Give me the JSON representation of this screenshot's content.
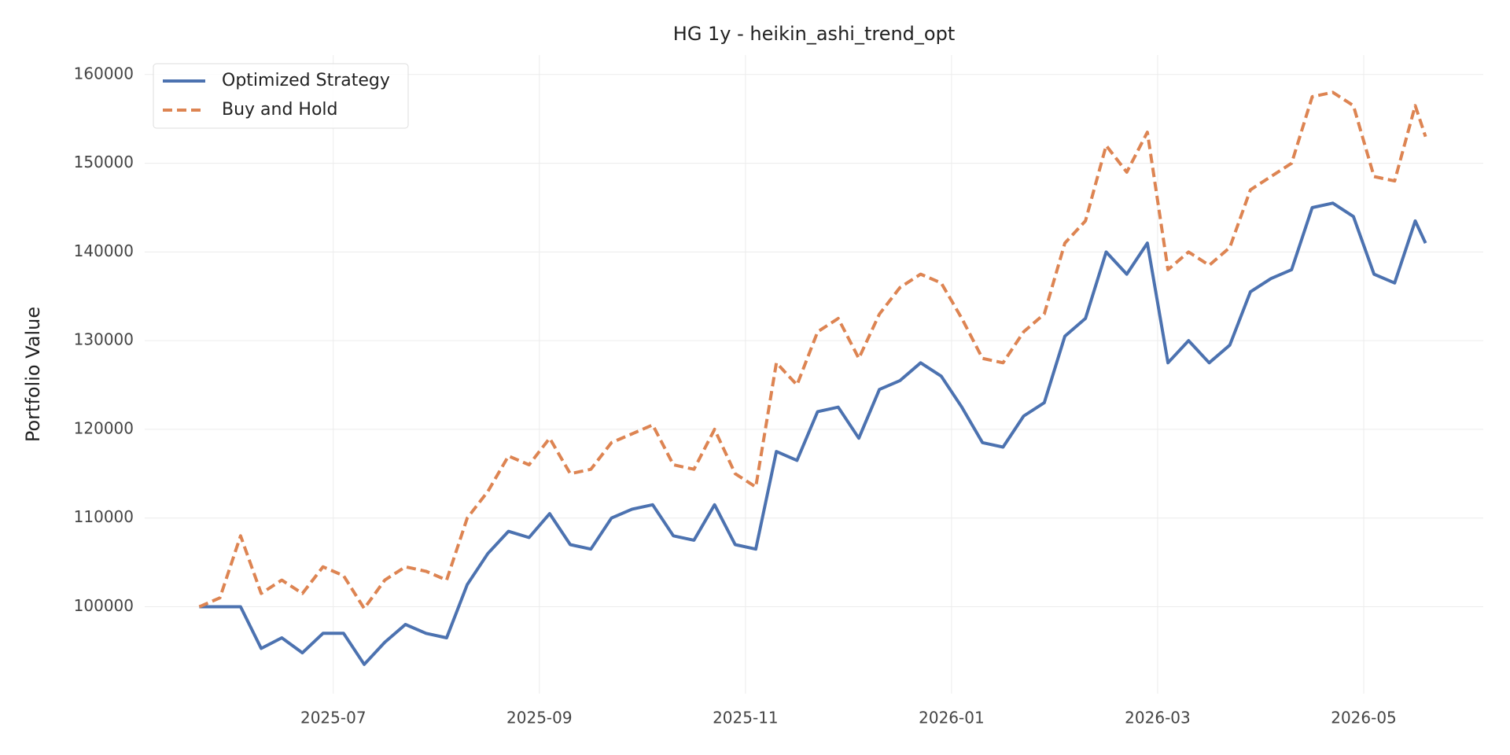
{
  "chart_data": {
    "type": "line",
    "title": "HG 1y - heikin_ashi_trend_opt",
    "ylabel": "Portfolio Value",
    "x": [
      5.7,
      5.9,
      6.1,
      6.3,
      6.5,
      6.7,
      6.9,
      7.1,
      7.3,
      7.5,
      7.7,
      7.9,
      8.1,
      8.3,
      8.5,
      8.7,
      8.9,
      9.1,
      9.3,
      9.5,
      9.7,
      9.9,
      10.1,
      10.3,
      10.5,
      10.7,
      10.9,
      11.1,
      11.3,
      11.5,
      11.7,
      11.9,
      12.1,
      12.3,
      12.5,
      12.7,
      12.9,
      13.1,
      13.3,
      13.5,
      13.7,
      13.9,
      14.1,
      14.3,
      14.5,
      14.7,
      14.9,
      15.1,
      15.3,
      15.5,
      15.7,
      15.9,
      16.1,
      16.3,
      16.5,
      16.7,
      16.9,
      17.1,
      17.3,
      17.5,
      17.6
    ],
    "series": [
      {
        "name": "Optimized Strategy",
        "color": "#4c72b0",
        "linestyle": "solid",
        "values": [
          100000,
          100000,
          100000,
          95300,
          96500,
          94800,
          97000,
          97000,
          93500,
          96000,
          98000,
          97000,
          96500,
          102500,
          106000,
          108500,
          107800,
          110500,
          107000,
          106500,
          110000,
          111000,
          111500,
          108000,
          107500,
          111500,
          107000,
          106500,
          117500,
          116500,
          122000,
          122500,
          119000,
          124500,
          125500,
          127500,
          126000,
          122500,
          118500,
          118000,
          121500,
          123000,
          130500,
          132500,
          140000,
          137500,
          141000,
          127500,
          130000,
          127500,
          129500,
          135500,
          137000,
          138000,
          145000,
          145500,
          144000,
          137500,
          136500,
          143500,
          141000
        ]
      },
      {
        "name": "Buy and Hold",
        "color": "#dd8452",
        "linestyle": "dashed",
        "values": [
          100000,
          101000,
          108000,
          101500,
          103000,
          101500,
          104500,
          103500,
          99800,
          103000,
          104500,
          104000,
          103000,
          110000,
          113000,
          117000,
          116000,
          119000,
          115000,
          115500,
          118500,
          119500,
          120500,
          116000,
          115500,
          120000,
          115000,
          113500,
          127500,
          125000,
          131000,
          132500,
          128000,
          133000,
          136000,
          137500,
          136500,
          132500,
          128000,
          127500,
          131000,
          133000,
          141000,
          143500,
          152000,
          149000,
          153500,
          138000,
          140000,
          138500,
          140500,
          147000,
          148500,
          150000,
          157500,
          158000,
          156500,
          148500,
          148000,
          156500,
          153000
        ]
      }
    ],
    "xlim": [
      5.17,
      18.16
    ],
    "xticks": [
      {
        "value": 7,
        "label": "2025-07"
      },
      {
        "value": 9,
        "label": "2025-09"
      },
      {
        "value": 11,
        "label": "2025-11"
      },
      {
        "value": 13,
        "label": "2026-01"
      },
      {
        "value": 15,
        "label": "2026-03"
      },
      {
        "value": 17,
        "label": "2026-05"
      }
    ],
    "ylim": [
      90200,
      162200
    ],
    "yticks": [
      100000,
      110000,
      120000,
      130000,
      140000,
      150000,
      160000
    ],
    "grid": true,
    "legend": "upper left"
  }
}
